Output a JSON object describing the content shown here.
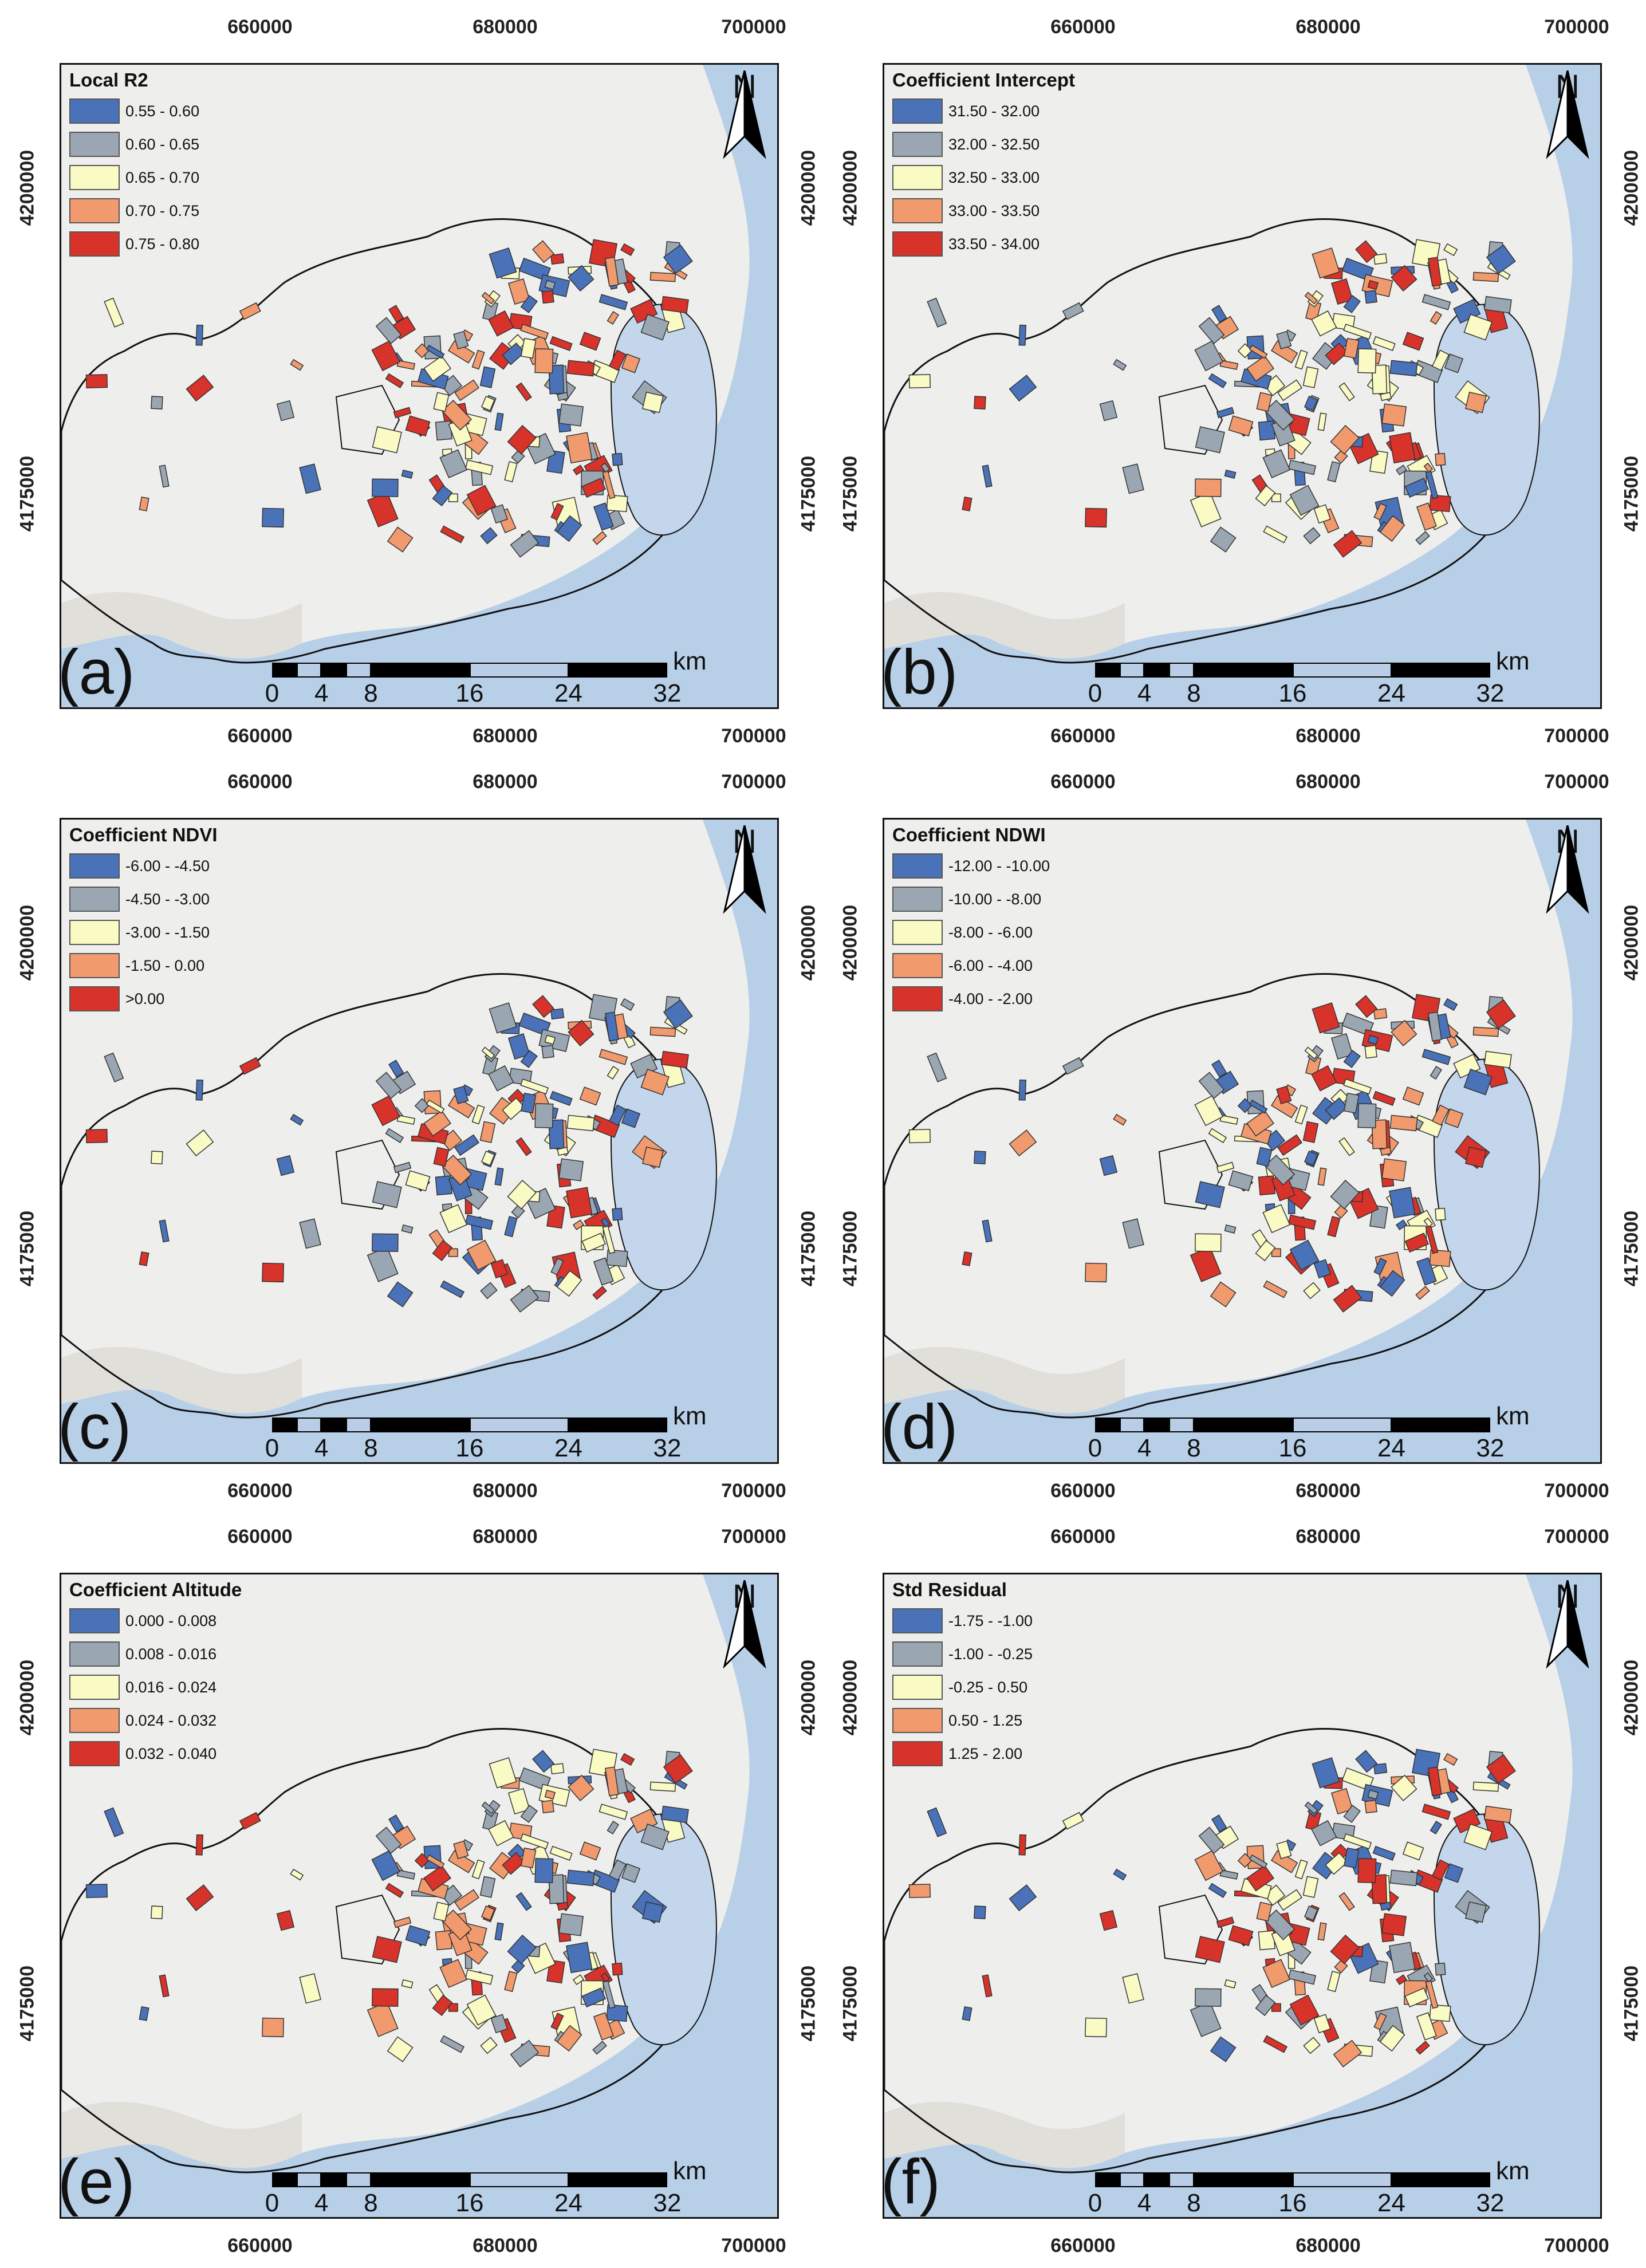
{
  "x_ticks": [
    "660000",
    "680000",
    "700000"
  ],
  "y_ticks": [
    "4200000",
    "4175000"
  ],
  "north_label": "N",
  "scale": {
    "labels": [
      "0",
      "4",
      "8",
      "16",
      "24",
      "32"
    ],
    "unit": "km"
  },
  "panels": [
    {
      "letter": "(a)",
      "title": "Local R2",
      "classes": [
        {
          "label": "0.55 - 0.60",
          "color": "#4a72b8"
        },
        {
          "label": "0.60 - 0.65",
          "color": "#9aa7b3"
        },
        {
          "label": "0.65 - 0.70",
          "color": "#fafac4"
        },
        {
          "label": "0.70 - 0.75",
          "color": "#f19a6e"
        },
        {
          "label": "0.75 - 0.80",
          "color": "#d8332a"
        }
      ]
    },
    {
      "letter": "(b)",
      "title": "Coefficient Intercept",
      "classes": [
        {
          "label": "31.50 - 32.00",
          "color": "#4a72b8"
        },
        {
          "label": "32.00 - 32.50",
          "color": "#9aa7b3"
        },
        {
          "label": "32.50 - 33.00",
          "color": "#fafac4"
        },
        {
          "label": "33.00 - 33.50",
          "color": "#f19a6e"
        },
        {
          "label": "33.50 - 34.00",
          "color": "#d8332a"
        }
      ]
    },
    {
      "letter": "(c)",
      "title": "Coefficient NDVI",
      "classes": [
        {
          "label": "-6.00 - -4.50",
          "color": "#4a72b8"
        },
        {
          "label": "-4.50 - -3.00",
          "color": "#9aa7b3"
        },
        {
          "label": "-3.00 - -1.50",
          "color": "#fafac4"
        },
        {
          "label": "-1.50 - 0.00",
          "color": "#f19a6e"
        },
        {
          "label": ">0.00",
          "color": "#d8332a"
        }
      ]
    },
    {
      "letter": "(d)",
      "title": "Coefficient NDWI",
      "classes": [
        {
          "label": "-12.00 - -10.00",
          "color": "#4a72b8"
        },
        {
          "label": "-10.00 - -8.00",
          "color": "#9aa7b3"
        },
        {
          "label": "-8.00 - -6.00",
          "color": "#fafac4"
        },
        {
          "label": "-6.00 - -4.00",
          "color": "#f19a6e"
        },
        {
          "label": "-4.00 - -2.00",
          "color": "#d8332a"
        }
      ]
    },
    {
      "letter": "(e)",
      "title": "Coefficient Altitude",
      "classes": [
        {
          "label": "0.000 - 0.008",
          "color": "#4a72b8"
        },
        {
          "label": "0.008 - 0.016",
          "color": "#9aa7b3"
        },
        {
          "label": "0.016 - 0.024",
          "color": "#fafac4"
        },
        {
          "label": "0.024 - 0.032",
          "color": "#f19a6e"
        },
        {
          "label": "0.032 - 0.040",
          "color": "#d8332a"
        }
      ]
    },
    {
      "letter": "(f)",
      "title": "Std Residual",
      "classes": [
        {
          "label": "-1.75 - -1.00",
          "color": "#4a72b8"
        },
        {
          "label": "-1.00 - -0.25",
          "color": "#9aa7b3"
        },
        {
          "label": "-0.25 - 0.50",
          "color": "#fafac4"
        },
        {
          "label": "0.50 - 1.25",
          "color": "#f19a6e"
        },
        {
          "label": "1.25 - 2.00",
          "color": "#d8332a"
        }
      ]
    }
  ],
  "colors": {
    "sea": "#b8cfe8",
    "land": "#eeeeec",
    "lagoon": "#c3d6ec",
    "outline": "#111111"
  }
}
